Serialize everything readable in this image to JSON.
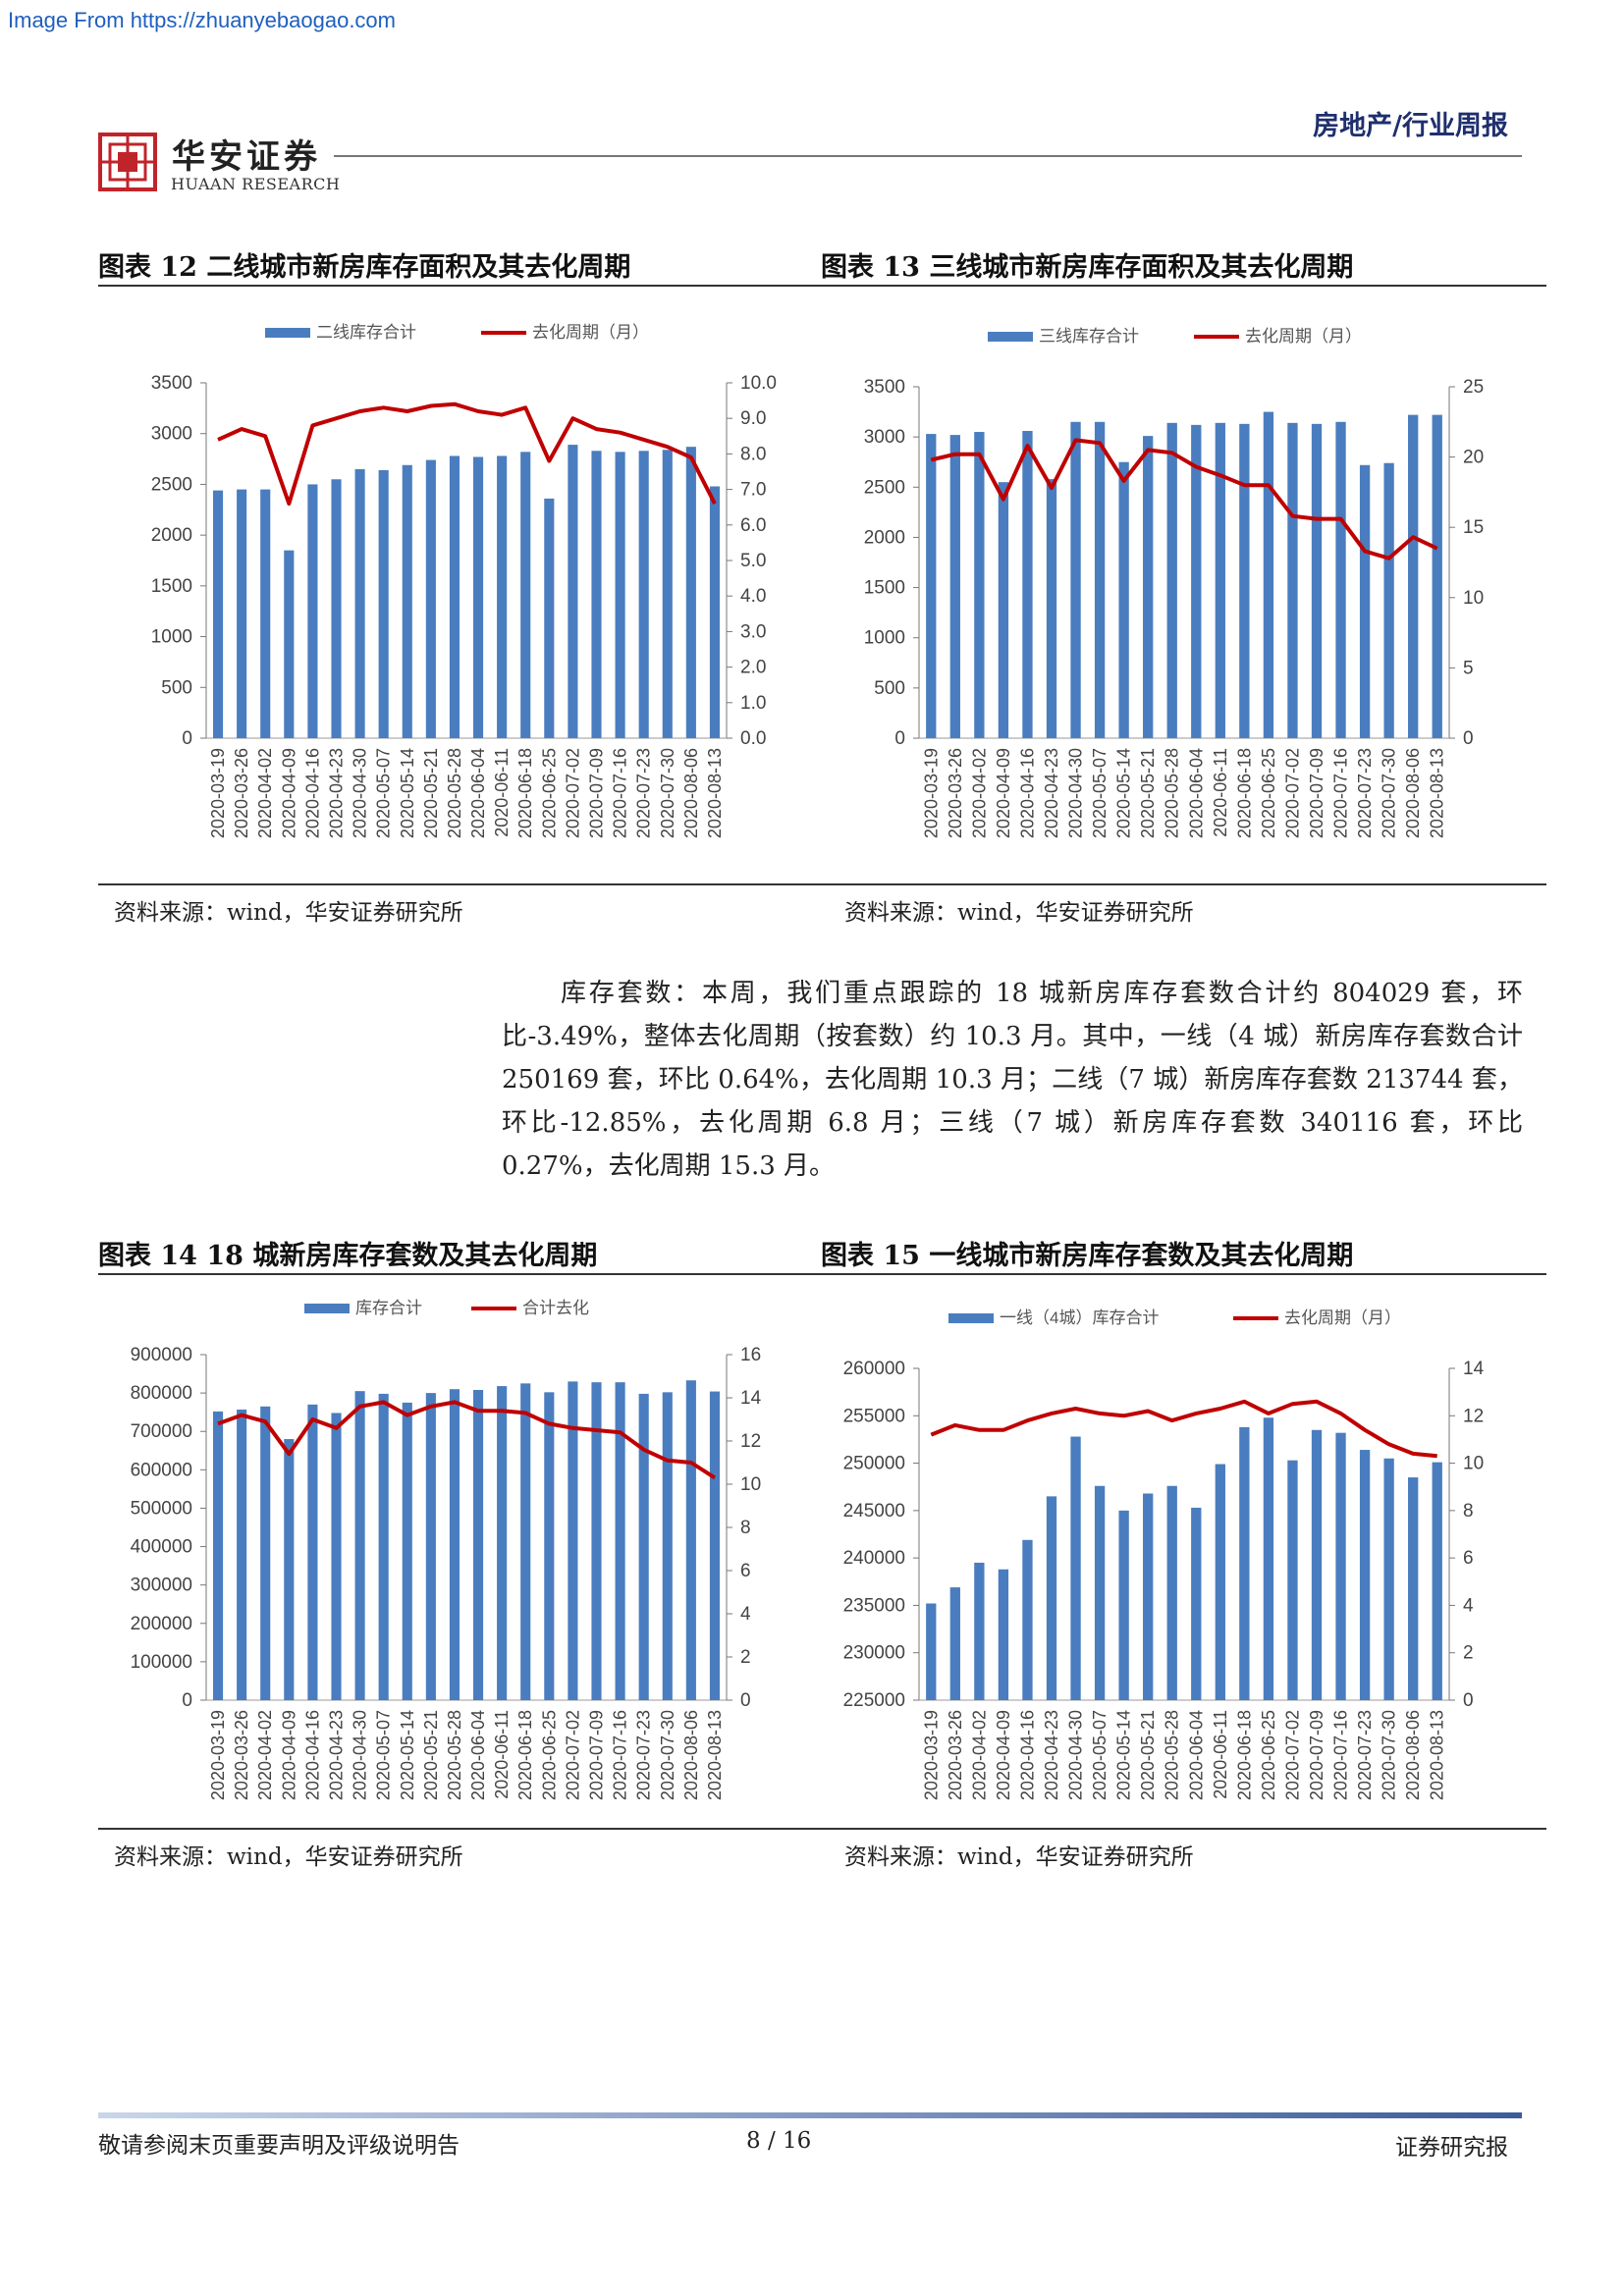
{
  "source_url": "Image From https://zhuanyebaogao.com",
  "header": {
    "logo_cn": "华安证券",
    "logo_en": "HUAAN RESEARCH",
    "report_type": "房地产/行业周报"
  },
  "charts_text": {
    "c12_title": "图表 12  二线城市新房库存面积及其去化周期",
    "c13_title": "图表 13  三线城市新房库存面积及其去化周期",
    "c14_title": "图表 14 18 城新房库存套数及其去化周期",
    "c15_title": "图表 15  一线城市新房库存套数及其去化周期",
    "source_note": "资料来源：wind，华安证券研究所"
  },
  "paragraph": "库存套数：本周，我们重点跟踪的 18 城新房库存套数合计约 804029 套，环比-3.49%，整体去化周期（按套数）约 10.3 月。其中，一线（4 城）新房库存套数合计 250169 套，环比 0.64%，去化周期 10.3 月；二线（7 城）新房库存套数 213744 套，环比-12.85%，去化周期 6.8 月；三线（7 城）新房库存套数 340116 套，环比 0.27%，去化周期 15.3 月。",
  "footer": {
    "left": "敬请参阅末页重要声明及评级说明告",
    "page": "8 / 16",
    "right": "证券研究报"
  },
  "colors": {
    "bar": "#4a7dbf",
    "line": "#c00000",
    "title_blue": "#1f2f6e"
  },
  "chart_data": [
    {
      "id": "c12",
      "type": "bar+line",
      "categories": [
        "2020-03-19",
        "2020-03-26",
        "2020-04-02",
        "2020-04-09",
        "2020-04-16",
        "2020-04-23",
        "2020-04-30",
        "2020-05-07",
        "2020-05-14",
        "2020-05-21",
        "2020-05-28",
        "2020-06-04",
        "2020-06-11",
        "2020-06-18",
        "2020-06-25",
        "2020-07-02",
        "2020-07-09",
        "2020-07-16",
        "2020-07-23",
        "2020-07-30",
        "2020-08-06",
        "2020-08-13"
      ],
      "label_every": 1,
      "series": [
        {
          "name": "二线库存合计",
          "kind": "bar",
          "axis": "left",
          "values": [
            2440,
            2450,
            2450,
            1850,
            2500,
            2550,
            2650,
            2640,
            2690,
            2740,
            2780,
            2770,
            2780,
            2820,
            2360,
            2890,
            2830,
            2820,
            2830,
            2840,
            2870,
            2480
          ]
        },
        {
          "name": "去化周期（月）",
          "kind": "line",
          "axis": "right",
          "values": [
            8.4,
            8.7,
            8.5,
            6.6,
            8.8,
            9.0,
            9.2,
            9.3,
            9.2,
            9.35,
            9.4,
            9.2,
            9.1,
            9.3,
            7.8,
            9.0,
            8.7,
            8.6,
            8.4,
            8.2,
            7.9,
            6.6
          ]
        }
      ],
      "ylim_left": [
        0,
        3500
      ],
      "yticks_left": [
        "0",
        "500",
        "1000",
        "1500",
        "2000",
        "2500",
        "3000",
        "3500"
      ],
      "ylim_right": [
        0,
        10
      ],
      "yticks_right": [
        "0.0",
        "1.0",
        "2.0",
        "3.0",
        "4.0",
        "5.0",
        "6.0",
        "7.0",
        "8.0",
        "9.0",
        "10.0"
      ]
    },
    {
      "id": "c13",
      "type": "bar+line",
      "categories": [
        "2020-03-19",
        "2020-03-26",
        "2020-04-02",
        "2020-04-09",
        "2020-04-16",
        "2020-04-23",
        "2020-04-30",
        "2020-05-07",
        "2020-05-14",
        "2020-05-21",
        "2020-05-28",
        "2020-06-04",
        "2020-06-11",
        "2020-06-18",
        "2020-06-25",
        "2020-07-02",
        "2020-07-09",
        "2020-07-16",
        "2020-07-23",
        "2020-07-30",
        "2020-08-06",
        "2020-08-13"
      ],
      "label_every": 1,
      "series": [
        {
          "name": "三线库存合计",
          "kind": "bar",
          "axis": "left",
          "values": [
            3030,
            3020,
            3050,
            2550,
            3060,
            2580,
            3150,
            3150,
            2750,
            3010,
            3140,
            3120,
            3140,
            3130,
            3250,
            3140,
            3130,
            3150,
            2720,
            2740,
            3220,
            3220
          ]
        },
        {
          "name": "去化周期（月）",
          "kind": "line",
          "axis": "right",
          "values": [
            19.8,
            20.2,
            20.2,
            17.0,
            20.8,
            17.8,
            21.2,
            21.0,
            18.3,
            20.5,
            20.3,
            19.3,
            18.7,
            18.0,
            18.0,
            15.8,
            15.6,
            15.6,
            13.3,
            12.8,
            14.3,
            13.5
          ]
        }
      ],
      "ylim_left": [
        0,
        3500
      ],
      "yticks_left": [
        "0",
        "500",
        "1000",
        "1500",
        "2000",
        "2500",
        "3000",
        "3500"
      ],
      "ylim_right": [
        0,
        25
      ],
      "yticks_right": [
        "0",
        "5",
        "10",
        "15",
        "20",
        "25"
      ]
    },
    {
      "id": "c14",
      "type": "bar+line",
      "categories": [
        "2020-03-19",
        "2020-03-26",
        "2020-04-02",
        "2020-04-09",
        "2020-04-16",
        "2020-04-23",
        "2020-04-30",
        "2020-05-07",
        "2020-05-14",
        "2020-05-21",
        "2020-05-28",
        "2020-06-04",
        "2020-06-11",
        "2020-06-18",
        "2020-06-25",
        "2020-07-02",
        "2020-07-09",
        "2020-07-16",
        "2020-07-23",
        "2020-07-30",
        "2020-08-06",
        "2020-08-13"
      ],
      "label_every": 1,
      "series": [
        {
          "name": "库存合计",
          "kind": "bar",
          "axis": "left",
          "values": [
            752000,
            757000,
            765000,
            680000,
            770000,
            748000,
            805000,
            798000,
            775000,
            800000,
            810000,
            808000,
            818000,
            825000,
            802000,
            830000,
            828000,
            828000,
            798000,
            802000,
            833000,
            804000
          ]
        },
        {
          "name": "合计去化",
          "kind": "line",
          "axis": "right",
          "values": [
            12.8,
            13.2,
            12.9,
            11.4,
            13.0,
            12.6,
            13.6,
            13.8,
            13.2,
            13.6,
            13.8,
            13.4,
            13.4,
            13.3,
            12.8,
            12.6,
            12.5,
            12.4,
            11.6,
            11.1,
            11.0,
            10.3
          ]
        }
      ],
      "ylim_left": [
        0,
        900000
      ],
      "yticks_left": [
        "0",
        "100000",
        "200000",
        "300000",
        "400000",
        "500000",
        "600000",
        "700000",
        "800000",
        "900000"
      ],
      "ylim_right": [
        0,
        16
      ],
      "yticks_right": [
        "0",
        "2",
        "4",
        "6",
        "8",
        "10",
        "12",
        "14",
        "16"
      ]
    },
    {
      "id": "c15",
      "type": "bar+line",
      "categories": [
        "2020-03-19",
        "2020-03-26",
        "2020-04-02",
        "2020-04-09",
        "2020-04-16",
        "2020-04-23",
        "2020-04-30",
        "2020-05-07",
        "2020-05-14",
        "2020-05-21",
        "2020-05-28",
        "2020-06-04",
        "2020-06-11",
        "2020-06-18",
        "2020-06-25",
        "2020-07-02",
        "2020-07-09",
        "2020-07-16",
        "2020-07-23",
        "2020-07-30",
        "2020-08-06",
        "2020-08-13"
      ],
      "label_every": 1,
      "series": [
        {
          "name": "一线（4城）库存合计",
          "kind": "bar",
          "axis": "left",
          "values": [
            235200,
            236900,
            239500,
            238800,
            241900,
            246500,
            252800,
            247600,
            245000,
            246800,
            247600,
            245300,
            249900,
            253800,
            254800,
            250300,
            253500,
            253200,
            251400,
            250500,
            248500,
            250100
          ]
        },
        {
          "name": "去化周期（月）",
          "kind": "line",
          "axis": "right",
          "values": [
            11.2,
            11.6,
            11.4,
            11.4,
            11.8,
            12.1,
            12.3,
            12.1,
            12.0,
            12.2,
            11.8,
            12.1,
            12.3,
            12.6,
            12.1,
            12.5,
            12.6,
            12.1,
            11.4,
            10.8,
            10.4,
            10.3
          ]
        }
      ],
      "ylim_left": [
        225000,
        260000
      ],
      "yticks_left": [
        "225000",
        "230000",
        "235000",
        "240000",
        "245000",
        "250000",
        "255000",
        "260000"
      ],
      "ylim_right": [
        0,
        14
      ],
      "yticks_right": [
        "0",
        "2",
        "4",
        "6",
        "8",
        "10",
        "12",
        "14"
      ]
    }
  ]
}
